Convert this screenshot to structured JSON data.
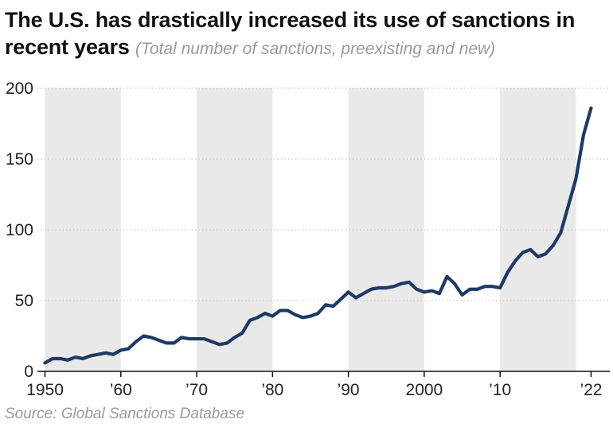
{
  "title": "The U.S. has drastically increased its use of sanctions in recent years",
  "subtitle": "(Total number of sanctions, preexisting and new)",
  "source": "Source: Global Sanctions Database",
  "colors": {
    "line": "#1e3a64",
    "band": "#e9e9e9",
    "grid": "#c9c9c9",
    "axis": "#111111"
  },
  "chart_data": {
    "type": "line",
    "title": "The U.S. has drastically increased its use of sanctions in recent years",
    "subtitle": "(Total number of sanctions, preexisting and new)",
    "xlabel": "",
    "ylabel": "",
    "xlim": [
      1949,
      2023
    ],
    "ylim": [
      0,
      200
    ],
    "yticks": [
      0,
      50,
      100,
      150,
      200
    ],
    "xticks": [
      {
        "value": 1950,
        "label": "1950"
      },
      {
        "value": 1960,
        "label": "’60"
      },
      {
        "value": 1970,
        "label": "’70"
      },
      {
        "value": 1980,
        "label": "’80"
      },
      {
        "value": 1990,
        "label": "’90"
      },
      {
        "value": 2000,
        "label": "2000"
      },
      {
        "value": 2010,
        "label": "’10"
      },
      {
        "value": 2022,
        "label": "’22"
      }
    ],
    "shaded_bands": [
      [
        1950,
        1960
      ],
      [
        1970,
        1980
      ],
      [
        1990,
        2000
      ],
      [
        2010,
        2020
      ]
    ],
    "grid": "horizontal-dotted",
    "series": [
      {
        "x": [
          1950,
          1951,
          1952,
          1953,
          1954,
          1955,
          1956,
          1957,
          1958,
          1959,
          1960,
          1961,
          1962,
          1963,
          1964,
          1965,
          1966,
          1967,
          1968,
          1969,
          1970,
          1971,
          1972,
          1973,
          1974,
          1975,
          1976,
          1977,
          1978,
          1979,
          1980,
          1981,
          1982,
          1983,
          1984,
          1985,
          1986,
          1987,
          1988,
          1989,
          1990,
          1991,
          1992,
          1993,
          1994,
          1995,
          1996,
          1997,
          1998,
          1999,
          2000,
          2001,
          2002,
          2003,
          2004,
          2005,
          2006,
          2007,
          2008,
          2009,
          2010,
          2011,
          2012,
          2013,
          2014,
          2015,
          2016,
          2017,
          2018,
          2019,
          2020,
          2021,
          2022
        ],
        "values": [
          6,
          9,
          9,
          8,
          10,
          9,
          11,
          12,
          13,
          12,
          15,
          16,
          21,
          25,
          24,
          22,
          20,
          20,
          24,
          23,
          23,
          23,
          21,
          19,
          20,
          24,
          27,
          36,
          38,
          41,
          39,
          43,
          43,
          40,
          38,
          39,
          41,
          47,
          46,
          51,
          56,
          52,
          55,
          58,
          59,
          59,
          60,
          62,
          63,
          58,
          56,
          57,
          55,
          67,
          62,
          54,
          58,
          58,
          60,
          60,
          59,
          70,
          78,
          84,
          86,
          81,
          83,
          89,
          98,
          117,
          136,
          167,
          186
        ]
      }
    ]
  }
}
